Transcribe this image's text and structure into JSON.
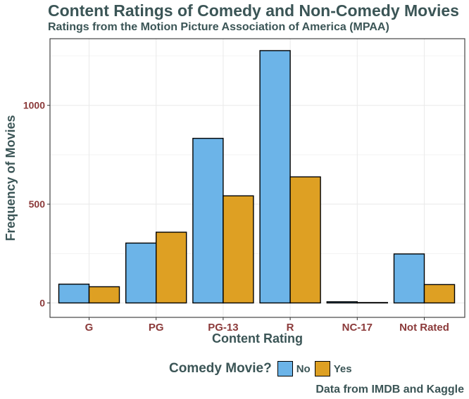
{
  "chart_data": {
    "type": "bar",
    "title": "Content Ratings of Comedy and Non-Comedy Movies",
    "subtitle": "Ratings from the Motion Picture Association of America (MPAA)",
    "xlabel": "Content Rating",
    "ylabel": "Frequency of Movies",
    "caption": "Data from IMDB and Kaggle",
    "categories": [
      "G",
      "PG",
      "PG-13",
      "R",
      "NC-17",
      "Not Rated"
    ],
    "yticks": [
      0,
      500,
      1000
    ],
    "ylim": [
      0,
      1290
    ],
    "grid": true,
    "legend": {
      "title": "Comedy Movie?",
      "position": "bottom"
    },
    "series": [
      {
        "name": "No",
        "color": "#6cb4e8",
        "values": [
          95,
          303,
          833,
          1277,
          6,
          248
        ]
      },
      {
        "name": "Yes",
        "color": "#dea023",
        "values": [
          82,
          358,
          542,
          638,
          2,
          93
        ]
      }
    ]
  },
  "colors": {
    "text": "#3b5556",
    "tick_label": "#8b3a3a",
    "grid": "#ebebeb"
  }
}
